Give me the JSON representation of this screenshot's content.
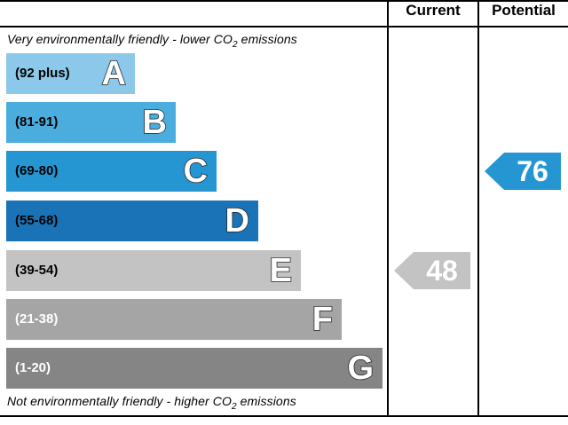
{
  "header": {
    "current_label": "Current",
    "potential_label": "Potential"
  },
  "captions": {
    "top_text": "Very environmentally friendly - lower CO",
    "top_sub": "2",
    "top_suffix": " emissions",
    "bottom_text": "Not environmentally friendly - higher CO",
    "bottom_sub": "2",
    "bottom_suffix": " emissions"
  },
  "chart_data": {
    "type": "bar",
    "bands": [
      {
        "range": "(92 plus)",
        "letter": "A",
        "color": "#8cc8ea",
        "text_color": "#000000"
      },
      {
        "range": "(81-91)",
        "letter": "B",
        "color": "#4badde",
        "text_color": "#000000"
      },
      {
        "range": "(69-80)",
        "letter": "C",
        "color": "#2596d2",
        "text_color": "#000000"
      },
      {
        "range": "(55-68)",
        "letter": "D",
        "color": "#1a73b6",
        "text_color": "#000000"
      },
      {
        "range": "(39-54)",
        "letter": "E",
        "color": "#c3c3c3",
        "text_color": "#000000"
      },
      {
        "range": "(21-38)",
        "letter": "F",
        "color": "#a5a5a5",
        "text_color": "#ffffff"
      },
      {
        "range": "(1-20)",
        "letter": "G",
        "color": "#858585",
        "text_color": "#ffffff"
      }
    ],
    "current": {
      "value": "48",
      "band": "E",
      "color": "#c3c3c3"
    },
    "potential": {
      "value": "76",
      "band": "C",
      "color": "#2596d2"
    }
  }
}
